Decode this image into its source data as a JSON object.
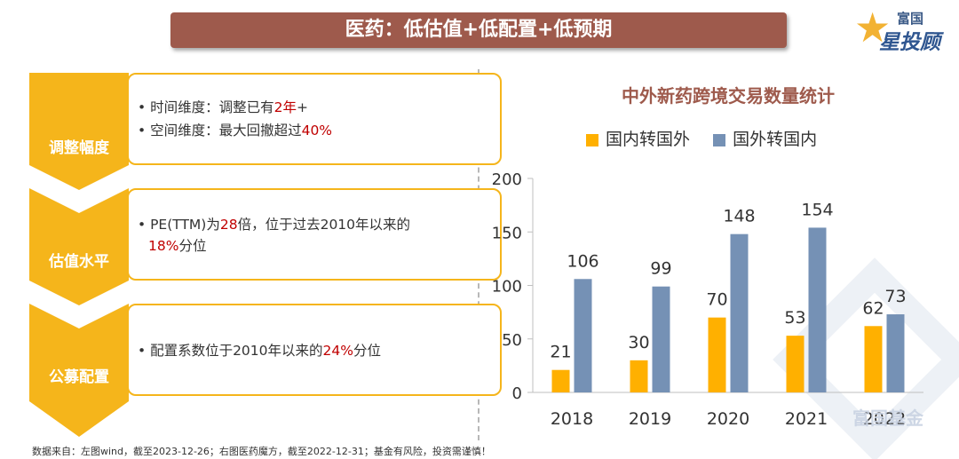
{
  "header": {
    "title": "医药：低估值+低配置+低预期"
  },
  "logo": {
    "small": "富国",
    "big": "星投顾"
  },
  "left_panel": {
    "rows": [
      {
        "label": "调整幅度",
        "bullets": [
          {
            "pre": "• 时间维度：调整已有",
            "hl": "2年",
            "post": "+"
          },
          {
            "pre": "• 空间维度：最大回撤超过",
            "hl": "40%",
            "post": ""
          }
        ]
      },
      {
        "label": "估值水平",
        "bullets": [
          {
            "pre": "• PE(TTM)为",
            "hl": "28",
            "post": "倍，位于过去2010年以来的"
          },
          {
            "pre": "",
            "hl": "18%",
            "post": "分位"
          }
        ]
      },
      {
        "label": "公募配置",
        "bullets": [
          {
            "pre": "• 配置系数位于2010年以来的",
            "hl": "24%",
            "post": "分位"
          }
        ]
      }
    ]
  },
  "chart_data": {
    "type": "bar",
    "title": "中外新药跨境交易数量统计",
    "categories": [
      "2018",
      "2019",
      "2020",
      "2021",
      "2022"
    ],
    "series": [
      {
        "name": "国内转国外",
        "values": [
          21,
          30,
          70,
          53,
          62
        ],
        "color": "#ffb000"
      },
      {
        "name": "国外转国内",
        "values": [
          106,
          99,
          148,
          154,
          73
        ],
        "color": "#7591b5"
      }
    ],
    "ylim": [
      0,
      200
    ],
    "yticks": [
      "0",
      "50",
      "100",
      "150",
      "200"
    ],
    "legend": "top"
  },
  "footer": "数据来自：左图wind，截至2023-12-26；右图医药魔方，截至2022-12-31；基金有风险，投资需谨慎！",
  "watermark": "富国基金",
  "colors": {
    "title_bg": "#9e5a4c",
    "accent": "#f5b51b",
    "highlight": "#c00000"
  }
}
